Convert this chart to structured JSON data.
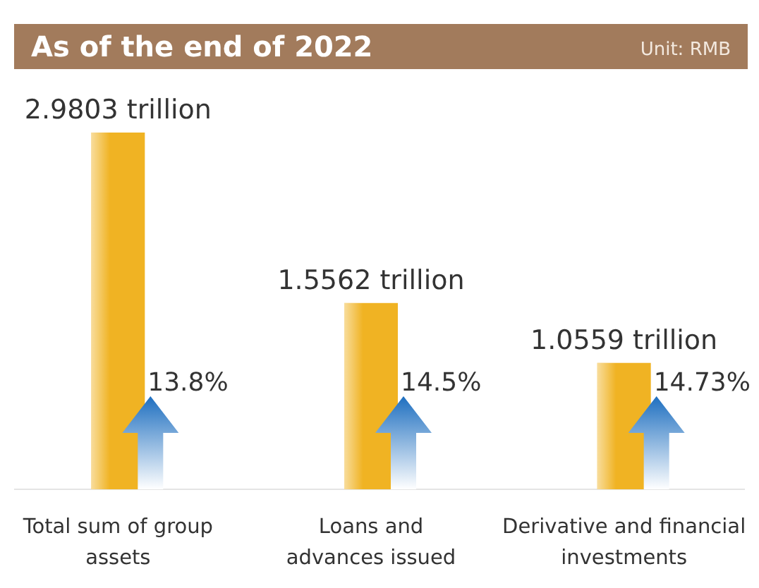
{
  "chart_data": {
    "type": "bar",
    "title": "As of the end of 2022",
    "subtitle": "Unit: RMB",
    "categories": [
      "Total sum of group assets",
      "Loans and advances issued",
      "Derivative and financial investments"
    ],
    "values": [
      2.9803,
      1.5562,
      1.0559
    ],
    "value_labels": [
      "2.9803 trillion",
      "1.5562 trillion",
      "1.0559 trillion"
    ],
    "color": "#f0b323",
    "annotations": [
      "13.8%",
      "14.5%",
      "14.73%"
    ]
  }
}
